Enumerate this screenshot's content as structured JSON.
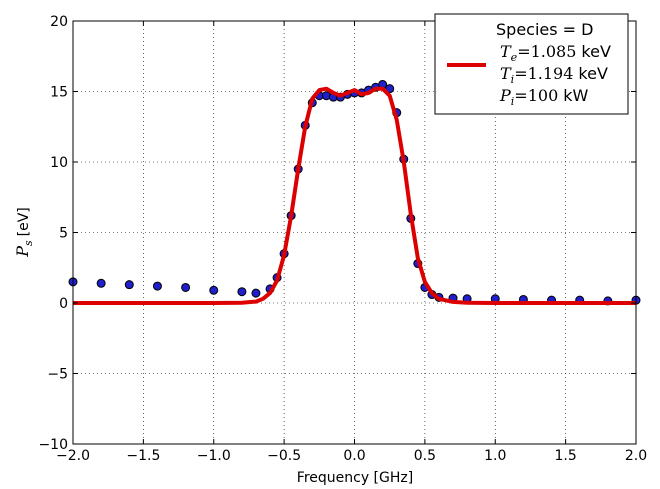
{
  "chart_data": {
    "type": "scatter",
    "xlabel": "Frequency [GHz]",
    "ylabel_main": "P",
    "ylabel_sub": "s",
    "ylabel_unit": "[eV]",
    "xlim": [
      -2.0,
      2.0
    ],
    "ylim": [
      -10,
      20
    ],
    "grid": true,
    "x_ticks": [
      -2.0,
      -1.5,
      -1.0,
      -0.5,
      0.0,
      0.5,
      1.0,
      1.5,
      2.0
    ],
    "x_tick_labels": [
      "−2.0",
      "−1.5",
      "−1.0",
      "−0.5",
      "0.0",
      "0.5",
      "1.0",
      "1.5",
      "2.0"
    ],
    "y_ticks": [
      -10,
      -5,
      0,
      5,
      10,
      15,
      20
    ],
    "y_tick_labels": [
      "−10",
      "−5",
      "0",
      "5",
      "10",
      "15",
      "20"
    ],
    "legend_placement": "top-right",
    "legend": {
      "title": "Species = D",
      "entries": [
        {
          "symbol": "T",
          "sub": "e",
          "value": "=1.085",
          "unit": "keV"
        },
        {
          "symbol": "T",
          "sub": "i",
          "value": "=1.194",
          "unit": "keV"
        },
        {
          "symbol": "P",
          "sub": "i",
          "value": "=100",
          "unit": "kW"
        }
      ]
    },
    "series": [
      {
        "kind": "points",
        "marker_color": "#1f1fcc",
        "edge_color": "#000000",
        "x": [
          -2.0,
          -1.8,
          -1.6,
          -1.4,
          -1.2,
          -1.0,
          -0.8,
          -0.7,
          -0.6,
          -0.55,
          -0.5,
          -0.45,
          -0.4,
          -0.35,
          -0.3,
          -0.25,
          -0.2,
          -0.15,
          -0.1,
          -0.05,
          0.0,
          0.05,
          0.1,
          0.15,
          0.2,
          0.25,
          0.3,
          0.35,
          0.4,
          0.45,
          0.5,
          0.55,
          0.6,
          0.7,
          0.8,
          1.0,
          1.2,
          1.4,
          1.6,
          1.8,
          2.0
        ],
        "y": [
          1.5,
          1.4,
          1.3,
          1.2,
          1.1,
          0.9,
          0.8,
          0.7,
          1.0,
          1.8,
          3.5,
          6.2,
          9.5,
          12.6,
          14.2,
          14.7,
          14.7,
          14.6,
          14.6,
          14.8,
          14.9,
          14.9,
          15.1,
          15.3,
          15.5,
          15.2,
          13.5,
          10.2,
          6.0,
          2.8,
          1.1,
          0.6,
          0.4,
          0.35,
          0.3,
          0.3,
          0.25,
          0.2,
          0.2,
          0.15,
          0.2
        ]
      },
      {
        "kind": "line",
        "color": "#dd0000",
        "x": [
          -2.0,
          -1.5,
          -1.0,
          -0.8,
          -0.7,
          -0.65,
          -0.6,
          -0.55,
          -0.5,
          -0.45,
          -0.4,
          -0.35,
          -0.3,
          -0.25,
          -0.2,
          -0.15,
          -0.1,
          -0.05,
          0.0,
          0.05,
          0.1,
          0.15,
          0.2,
          0.25,
          0.3,
          0.35,
          0.4,
          0.45,
          0.5,
          0.55,
          0.6,
          0.7,
          0.8,
          1.0,
          1.5,
          2.0
        ],
        "y": [
          0.0,
          0.0,
          0.0,
          0.02,
          0.1,
          0.3,
          0.7,
          1.6,
          3.4,
          6.2,
          9.5,
          12.5,
          14.5,
          15.1,
          15.2,
          14.9,
          14.7,
          14.9,
          15.1,
          14.8,
          14.9,
          15.2,
          15.2,
          14.7,
          13.0,
          10.0,
          6.3,
          3.2,
          1.5,
          0.7,
          0.3,
          0.08,
          0.02,
          0.0,
          0.0,
          0.0
        ]
      }
    ]
  }
}
